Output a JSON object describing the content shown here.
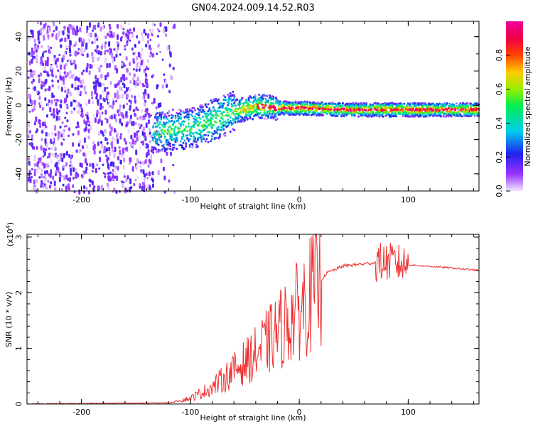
{
  "title": "GN04.2024.009.14.52.R03",
  "chart_data": [
    {
      "type": "heatmap",
      "xlabel": "Height of straight line (km)",
      "ylabel": "Frequency (Hz)",
      "xlim": [
        -250,
        165
      ],
      "ylim": [
        -50,
        49
      ],
      "x_ticks": [
        "-200",
        "-100",
        "0",
        "100"
      ],
      "y_ticks": [
        "-40",
        "-20",
        "0",
        "20",
        "40"
      ],
      "colorbar": {
        "label": "Normalized spectral amplitude",
        "range": [
          0,
          1
        ],
        "ticks": [
          "0.0",
          "0.2",
          "0.4",
          "0.6",
          "0.8"
        ]
      },
      "noise_x_range": [
        -250,
        -135
      ],
      "signal_trace": [
        {
          "x": -135,
          "y": -15
        },
        {
          "x": -120,
          "y": -14
        },
        {
          "x": -100,
          "y": -13
        },
        {
          "x": -80,
          "y": -8
        },
        {
          "x": -60,
          "y": -3
        },
        {
          "x": -40,
          "y": 0
        },
        {
          "x": -20,
          "y": -1
        },
        {
          "x": 0,
          "y": -1
        },
        {
          "x": 40,
          "y": -2
        },
        {
          "x": 80,
          "y": -2
        },
        {
          "x": 120,
          "y": -2
        },
        {
          "x": 165,
          "y": -2
        }
      ]
    },
    {
      "type": "line",
      "xlabel": "Height of straight line (km)",
      "ylabel": "SNR (10 * v/v)",
      "y_scale_label": "(x10",
      "y_scale_exp": "4",
      "y_scale_close": ")",
      "xlim": [
        -250,
        165
      ],
      "ylim": [
        0,
        3.05
      ],
      "x_ticks": [
        "-200",
        "-100",
        "0",
        "100"
      ],
      "y_ticks": [
        "0",
        "1",
        "2",
        "3"
      ],
      "color": "#ee3030",
      "envelope": [
        {
          "x": -250,
          "y": 0.0
        },
        {
          "x": -120,
          "y": 0.02
        },
        {
          "x": -100,
          "y": 0.1
        },
        {
          "x": -80,
          "y": 0.3
        },
        {
          "x": -60,
          "y": 0.6
        },
        {
          "x": -40,
          "y": 0.9
        },
        {
          "x": -25,
          "y": 1.2
        },
        {
          "x": -15,
          "y": 1.4
        },
        {
          "x": 0,
          "y": 1.7
        },
        {
          "x": 15,
          "y": 2.1
        },
        {
          "x": 25,
          "y": 2.35
        },
        {
          "x": 40,
          "y": 2.48
        },
        {
          "x": 60,
          "y": 2.52
        },
        {
          "x": 75,
          "y": 2.55
        },
        {
          "x": 85,
          "y": 2.55
        },
        {
          "x": 100,
          "y": 2.5
        },
        {
          "x": 130,
          "y": 2.46
        },
        {
          "x": 165,
          "y": 2.4
        }
      ]
    }
  ]
}
